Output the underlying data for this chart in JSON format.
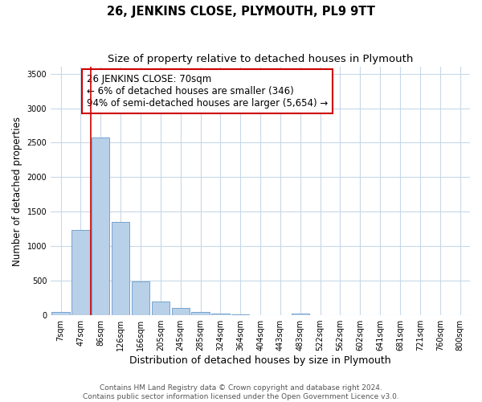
{
  "title": "26, JENKINS CLOSE, PLYMOUTH, PL9 9TT",
  "subtitle": "Size of property relative to detached houses in Plymouth",
  "xlabel": "Distribution of detached houses by size in Plymouth",
  "ylabel": "Number of detached properties",
  "bar_labels": [
    "7sqm",
    "47sqm",
    "86sqm",
    "126sqm",
    "166sqm",
    "205sqm",
    "245sqm",
    "285sqm",
    "324sqm",
    "364sqm",
    "404sqm",
    "443sqm",
    "483sqm",
    "522sqm",
    "562sqm",
    "602sqm",
    "641sqm",
    "681sqm",
    "721sqm",
    "760sqm",
    "800sqm"
  ],
  "bar_values": [
    50,
    1230,
    2570,
    1350,
    495,
    195,
    110,
    50,
    25,
    10,
    5,
    3,
    20,
    0,
    0,
    0,
    0,
    0,
    0,
    0,
    0
  ],
  "bar_color": "#b8d0e8",
  "bar_edgecolor": "#6699cc",
  "vline_x_idx": 1.5,
  "vline_color": "#cc0000",
  "box_edgecolor": "#cc0000",
  "annotation_title": "26 JENKINS CLOSE: 70sqm",
  "annotation_line1": "← 6% of detached houses are smaller (346)",
  "annotation_line2": "94% of semi-detached houses are larger (5,654) →",
  "ylim": [
    0,
    3600
  ],
  "yticks": [
    0,
    500,
    1000,
    1500,
    2000,
    2500,
    3000,
    3500
  ],
  "footer1": "Contains HM Land Registry data © Crown copyright and database right 2024.",
  "footer2": "Contains public sector information licensed under the Open Government Licence v3.0.",
  "bg_color": "#ffffff",
  "grid_color": "#c8d8e8",
  "title_fontsize": 10.5,
  "subtitle_fontsize": 9.5,
  "xlabel_fontsize": 9,
  "ylabel_fontsize": 8.5,
  "tick_fontsize": 7,
  "annotation_fontsize": 8.5,
  "footer_fontsize": 6.5
}
